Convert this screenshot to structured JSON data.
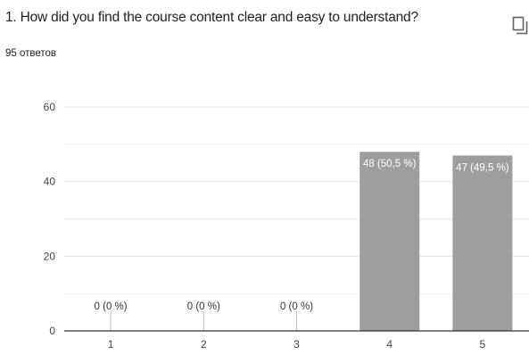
{
  "question": {
    "title": "1. How did you find the course content clear and easy to understand?",
    "response_count": "95 ответов"
  },
  "icons": {
    "copy": "copy-icon"
  },
  "colors": {
    "bar": "#9e9e9e",
    "grid": "#e6e6e6",
    "axis": "#333333"
  },
  "chart_data": {
    "type": "bar",
    "categories": [
      "1",
      "2",
      "3",
      "4",
      "5"
    ],
    "values": [
      0,
      0,
      0,
      48,
      47
    ],
    "data_labels": [
      "0 (0 %)",
      "0 (0 %)",
      "0 (0 %)",
      "48 (50,5 %)",
      "47 (49,5 %)"
    ],
    "y_ticks": [
      0,
      20,
      40,
      60
    ],
    "ylim": [
      0,
      60
    ],
    "grid": true,
    "title": "",
    "xlabel": "",
    "ylabel": ""
  }
}
